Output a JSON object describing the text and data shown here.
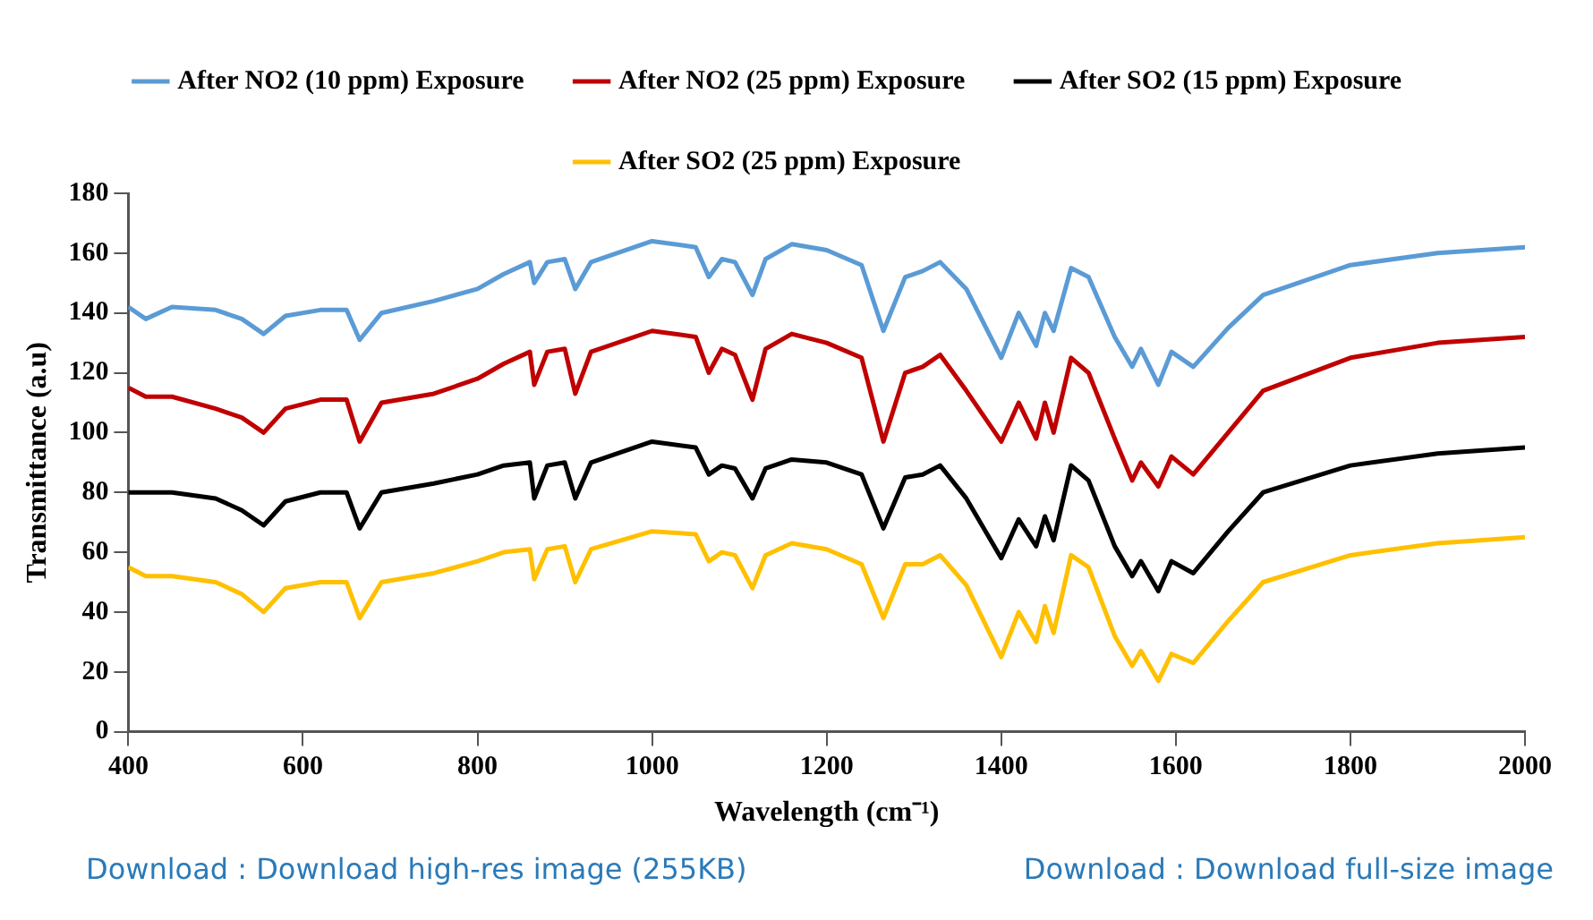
{
  "chart_data": {
    "type": "line",
    "xlabel": "Wavelength (cm⁻¹)",
    "ylabel": "Transmittance (a.u)",
    "x": [
      400,
      420,
      450,
      500,
      530,
      555,
      580,
      620,
      650,
      665,
      690,
      750,
      800,
      830,
      860,
      865,
      880,
      900,
      912,
      930,
      1000,
      1050,
      1065,
      1080,
      1095,
      1115,
      1130,
      1160,
      1200,
      1240,
      1265,
      1290,
      1310,
      1330,
      1360,
      1400,
      1420,
      1440,
      1450,
      1460,
      1480,
      1500,
      1530,
      1550,
      1560,
      1580,
      1595,
      1620,
      1660,
      1700,
      1800,
      1900,
      2000
    ],
    "series": [
      {
        "name": "After NO2 (10 ppm) Exposure",
        "color": "#5b9bd5",
        "values": [
          142,
          138,
          142,
          141,
          138,
          133,
          139,
          141,
          141,
          131,
          140,
          144,
          148,
          153,
          157,
          150,
          157,
          158,
          148,
          157,
          164,
          162,
          152,
          158,
          157,
          146,
          158,
          163,
          161,
          156,
          134,
          152,
          154,
          157,
          148,
          125,
          140,
          129,
          140,
          134,
          155,
          152,
          132,
          122,
          128,
          116,
          127,
          122,
          135,
          146,
          156,
          160,
          162
        ]
      },
      {
        "name": "After NO2 (25 ppm) Exposure",
        "color": "#c00000",
        "values": [
          115,
          112,
          112,
          108,
          105,
          100,
          108,
          111,
          111,
          97,
          110,
          113,
          118,
          123,
          127,
          116,
          127,
          128,
          113,
          127,
          134,
          132,
          120,
          128,
          126,
          111,
          128,
          133,
          130,
          125,
          97,
          120,
          122,
          126,
          114,
          97,
          110,
          98,
          110,
          100,
          125,
          120,
          98,
          84,
          90,
          82,
          92,
          86,
          100,
          114,
          125,
          130,
          132
        ]
      },
      {
        "name": "After SO2 (15 ppm) Exposure",
        "color": "#000000",
        "values": [
          80,
          80,
          80,
          78,
          74,
          69,
          77,
          80,
          80,
          68,
          80,
          83,
          86,
          89,
          90,
          78,
          89,
          90,
          78,
          90,
          97,
          95,
          86,
          89,
          88,
          78,
          88,
          91,
          90,
          86,
          68,
          85,
          86,
          89,
          78,
          58,
          71,
          62,
          72,
          64,
          89,
          84,
          62,
          52,
          57,
          47,
          57,
          53,
          67,
          80,
          89,
          93,
          95
        ]
      },
      {
        "name": "After SO2 (25 ppm) Exposure",
        "color": "#ffc000",
        "values": [
          55,
          52,
          52,
          50,
          46,
          40,
          48,
          50,
          50,
          38,
          50,
          53,
          57,
          60,
          61,
          51,
          61,
          62,
          50,
          61,
          67,
          66,
          57,
          60,
          59,
          48,
          59,
          63,
          61,
          56,
          38,
          56,
          56,
          59,
          49,
          25,
          40,
          30,
          42,
          33,
          59,
          55,
          32,
          22,
          27,
          17,
          26,
          23,
          37,
          50,
          59,
          63,
          65
        ]
      }
    ],
    "xlim": [
      400,
      2000
    ],
    "xticks": [
      400,
      600,
      800,
      1000,
      1200,
      1400,
      1600,
      1800,
      2000
    ],
    "ylim": [
      0,
      180
    ],
    "yticks": [
      0,
      20,
      40,
      60,
      80,
      100,
      120,
      140,
      160,
      180
    ],
    "grid": false,
    "legend": "top",
    "marker": "none",
    "line_style": "solid",
    "annotations": [
      "Download : Download high-res image (255KB)",
      "Download : Download full-size image"
    ]
  }
}
